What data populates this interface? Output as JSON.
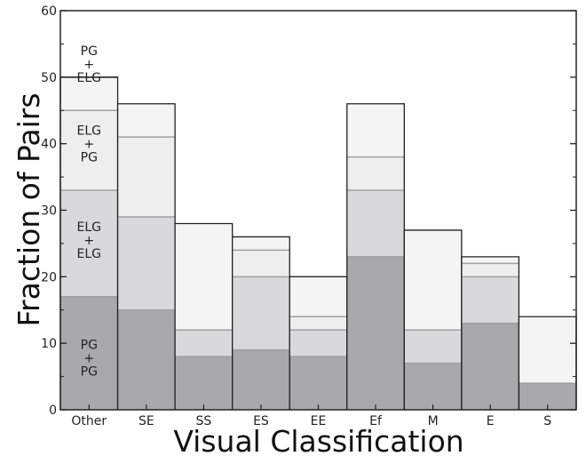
{
  "chart_data": {
    "type": "bar",
    "title": "",
    "xlabel": "Visual Classification",
    "ylabel": "Fraction of Pairs",
    "ylim": [
      0,
      60
    ],
    "yticks": [
      "0",
      "10",
      "20",
      "30",
      "40",
      "50",
      "60"
    ],
    "categories": [
      "Other",
      "SE",
      "SS",
      "ES",
      "EE",
      "Ef",
      "M",
      "E",
      "S"
    ],
    "stacked": true,
    "series": [
      {
        "values": [
          17,
          15,
          8,
          9,
          8,
          23,
          7,
          13,
          4
        ],
        "color": "#a9a9ab"
      },
      {
        "values": [
          16,
          14,
          4,
          11,
          4,
          10,
          5,
          7,
          0
        ],
        "color": "#d9d9db"
      },
      {
        "values": [
          12,
          12,
          0,
          4,
          2,
          5,
          0,
          2,
          0
        ],
        "color": "#eeeeee"
      },
      {
        "values": [
          5,
          5,
          16,
          2,
          6,
          8,
          15,
          1,
          10
        ],
        "color": "#f3f4f3"
      }
    ],
    "annotations": [
      {
        "text": [
          "PG",
          "+",
          "ELG"
        ],
        "y": 52
      },
      {
        "text": [
          "ELG",
          "+",
          "PG"
        ],
        "y": 40
      },
      {
        "text": [
          "ELG",
          "+",
          "ELG"
        ],
        "y": 25.5
      },
      {
        "text": [
          "PG",
          "+",
          "PG"
        ],
        "y": 7.8
      }
    ],
    "grid": false,
    "legend": "none"
  }
}
